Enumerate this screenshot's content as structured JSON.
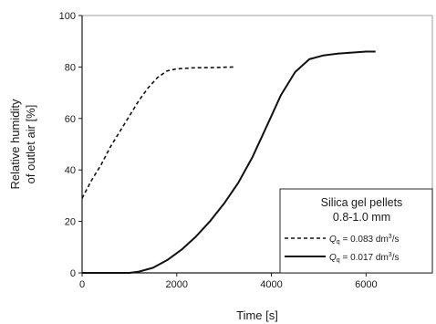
{
  "chart_data": {
    "type": "line",
    "xlabel": "Time [s]",
    "ylabel_lines": [
      "Relative humidity",
      "of outlet air [%]"
    ],
    "xlim": [
      0,
      7400
    ],
    "ylim": [
      0,
      100
    ],
    "x_ticks": [
      0,
      2000,
      4000,
      6000
    ],
    "y_ticks": [
      0,
      20,
      40,
      60,
      80,
      100
    ],
    "grid": false,
    "legend": {
      "placement": "bottom-right",
      "title_lines": [
        "Silica gel pellets",
        "0.8-1.0 mm"
      ]
    },
    "series": [
      {
        "label_prefix": "Q",
        "label_sub": "q",
        "label_value": " = 0.083 dm",
        "label_sup": "3",
        "label_unit": "/s",
        "style": "dashed",
        "color": "#111111",
        "x": [
          0,
          200,
          400,
          600,
          800,
          1000,
          1200,
          1400,
          1600,
          1800,
          2000,
          2400,
          2800,
          3200
        ],
        "y": [
          29,
          36,
          42,
          49,
          55,
          61,
          67,
          72,
          76,
          78.5,
          79.3,
          79.7,
          79.8,
          80
        ]
      },
      {
        "label_prefix": "Q",
        "label_sub": "q",
        "label_value": " = 0.017 dm",
        "label_sup": "3",
        "label_unit": "/s",
        "style": "solid",
        "color": "#111111",
        "x": [
          0,
          1000,
          1200,
          1500,
          1800,
          2100,
          2400,
          2700,
          3000,
          3300,
          3600,
          3900,
          4200,
          4500,
          4800,
          5100,
          5400,
          5700,
          6000,
          6200
        ],
        "y": [
          0,
          0,
          0.5,
          2,
          5,
          9,
          14,
          20,
          27,
          35,
          45,
          57,
          69,
          78,
          83,
          84.5,
          85.2,
          85.6,
          86,
          86
        ]
      }
    ]
  }
}
